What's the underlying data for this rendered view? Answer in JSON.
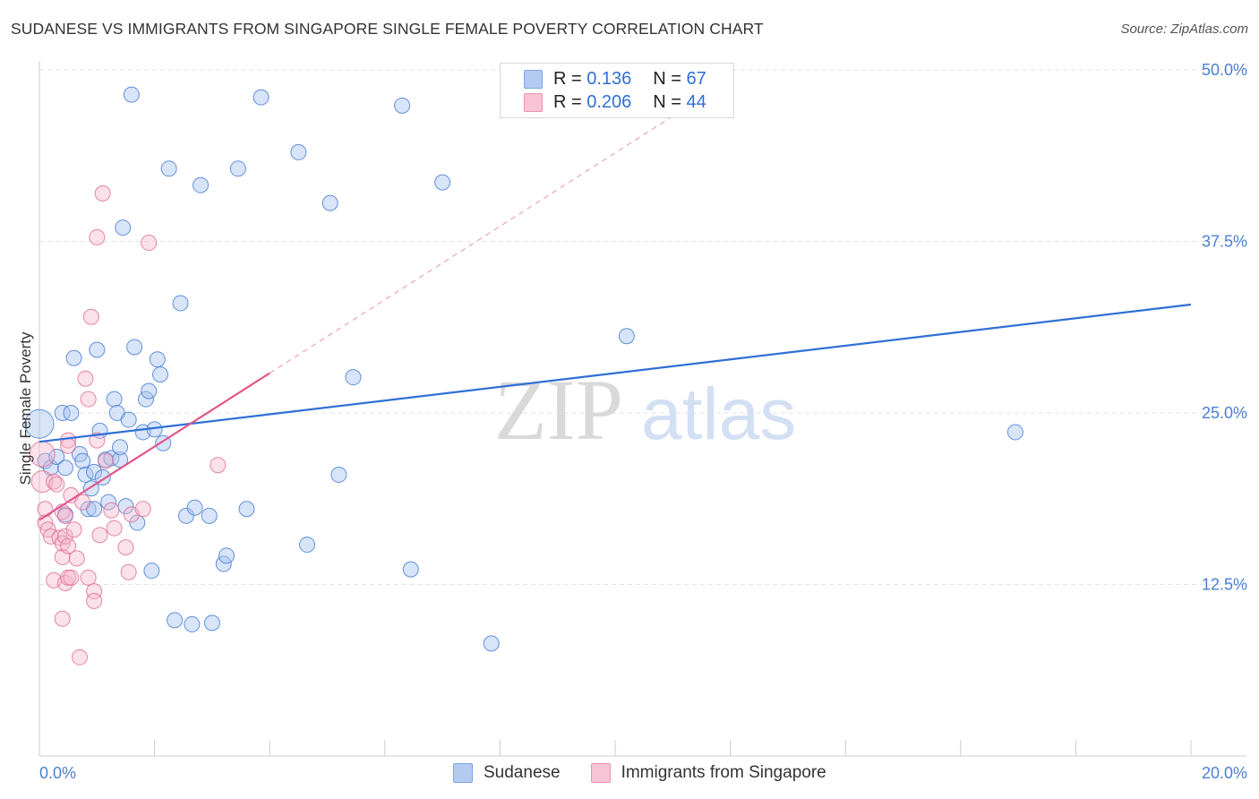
{
  "title": "SUDANESE VS IMMIGRANTS FROM SINGAPORE SINGLE FEMALE POVERTY CORRELATION CHART",
  "source": "Source: ZipAtlas.com",
  "watermark": {
    "zip": "ZIP",
    "atlas": "atlas"
  },
  "colors": {
    "blue_fill": "#a9c4ef",
    "blue_stroke": "#4a7fd4",
    "blue_line": "#2f6fd6",
    "pink_fill": "#f6b6cb",
    "pink_stroke": "#e0709a",
    "pink_line": "#e0578a",
    "axis_label": "#4a7fd4",
    "grid": "#e3e3e3"
  },
  "legend": {
    "rows": [
      {
        "r_label": "R =",
        "r_value": "0.136",
        "n_label": "N =",
        "n_value": "67"
      },
      {
        "r_label": "R =",
        "r_value": "0.206",
        "n_label": "N =",
        "n_value": "44"
      }
    ]
  },
  "bottom_legend": [
    "Sudanese",
    "Immigrants from Singapore"
  ],
  "chart_data": {
    "type": "scatter",
    "title": "SUDANESE VS IMMIGRANTS FROM SINGAPORE SINGLE FEMALE POVERTY CORRELATION CHART",
    "xlabel": "",
    "ylabel": "Single Female Poverty",
    "xlim": [
      0,
      20
    ],
    "ylim": [
      0,
      50
    ],
    "x_tick_labels": [
      "0.0%",
      "20.0%"
    ],
    "y_ticks": [
      12.5,
      25.0,
      37.5,
      50.0
    ],
    "y_tick_labels": [
      "12.5%",
      "25.0%",
      "37.5%",
      "50.0%"
    ],
    "grid": true,
    "legend_position": "top-center",
    "series": [
      {
        "name": "Sudanese",
        "R": 0.136,
        "N": 67,
        "trend": {
          "x": [
            0,
            20
          ],
          "y": [
            22.9,
            32.9
          ]
        },
        "points": [
          {
            "x": 0.0,
            "y": 24.2,
            "size": 16
          },
          {
            "x": 0.1,
            "y": 21.5
          },
          {
            "x": 0.2,
            "y": 21.0
          },
          {
            "x": 0.3,
            "y": 21.8
          },
          {
            "x": 0.4,
            "y": 25.0
          },
          {
            "x": 0.45,
            "y": 17.6
          },
          {
            "x": 0.45,
            "y": 21.0
          },
          {
            "x": 0.55,
            "y": 25.0
          },
          {
            "x": 0.6,
            "y": 29.0
          },
          {
            "x": 0.7,
            "y": 22.0
          },
          {
            "x": 0.75,
            "y": 21.5
          },
          {
            "x": 0.8,
            "y": 20.5
          },
          {
            "x": 0.85,
            "y": 18.0
          },
          {
            "x": 0.9,
            "y": 19.5
          },
          {
            "x": 0.95,
            "y": 20.7
          },
          {
            "x": 0.95,
            "y": 18.0
          },
          {
            "x": 1.0,
            "y": 29.6
          },
          {
            "x": 1.05,
            "y": 23.7
          },
          {
            "x": 1.1,
            "y": 20.3
          },
          {
            "x": 1.15,
            "y": 21.6
          },
          {
            "x": 1.2,
            "y": 18.5
          },
          {
            "x": 1.25,
            "y": 21.7
          },
          {
            "x": 1.3,
            "y": 26.0
          },
          {
            "x": 1.35,
            "y": 25.0
          },
          {
            "x": 1.4,
            "y": 21.6
          },
          {
            "x": 1.4,
            "y": 22.5
          },
          {
            "x": 1.45,
            "y": 38.5
          },
          {
            "x": 1.5,
            "y": 18.2
          },
          {
            "x": 1.55,
            "y": 24.5
          },
          {
            "x": 1.6,
            "y": 48.2
          },
          {
            "x": 1.65,
            "y": 29.8
          },
          {
            "x": 1.7,
            "y": 17.0
          },
          {
            "x": 1.8,
            "y": 23.6
          },
          {
            "x": 1.85,
            "y": 26.0
          },
          {
            "x": 1.9,
            "y": 26.6
          },
          {
            "x": 1.95,
            "y": 13.5
          },
          {
            "x": 2.0,
            "y": 23.8
          },
          {
            "x": 2.05,
            "y": 28.9
          },
          {
            "x": 2.1,
            "y": 27.8
          },
          {
            "x": 2.15,
            "y": 22.8
          },
          {
            "x": 2.25,
            "y": 42.8
          },
          {
            "x": 2.35,
            "y": 9.9
          },
          {
            "x": 2.45,
            "y": 33.0
          },
          {
            "x": 2.55,
            "y": 17.5
          },
          {
            "x": 2.65,
            "y": 9.6
          },
          {
            "x": 2.7,
            "y": 18.1
          },
          {
            "x": 2.8,
            "y": 41.6
          },
          {
            "x": 2.95,
            "y": 17.5
          },
          {
            "x": 3.0,
            "y": 9.7
          },
          {
            "x": 3.2,
            "y": 14.0
          },
          {
            "x": 3.25,
            "y": 14.6
          },
          {
            "x": 3.45,
            "y": 42.8
          },
          {
            "x": 3.6,
            "y": 18.0
          },
          {
            "x": 3.85,
            "y": 48.0
          },
          {
            "x": 4.5,
            "y": 44.0
          },
          {
            "x": 4.65,
            "y": 15.4
          },
          {
            "x": 5.05,
            "y": 40.3
          },
          {
            "x": 5.2,
            "y": 20.5
          },
          {
            "x": 5.45,
            "y": 27.6
          },
          {
            "x": 6.3,
            "y": 47.4
          },
          {
            "x": 6.45,
            "y": 13.6
          },
          {
            "x": 7.0,
            "y": 41.8
          },
          {
            "x": 7.85,
            "y": 8.2
          },
          {
            "x": 10.2,
            "y": 30.6
          },
          {
            "x": 16.95,
            "y": 23.6
          }
        ]
      },
      {
        "name": "Immigrants from Singapore",
        "R": 0.206,
        "N": 44,
        "trend": {
          "x": [
            0,
            4.0
          ],
          "y": [
            17.2,
            27.9
          ]
        },
        "trend_extension": {
          "x": [
            4.0,
            12.0
          ],
          "y": [
            27.9,
            49.3
          ]
        },
        "points": [
          {
            "x": 0.05,
            "y": 22.0,
            "size": 14
          },
          {
            "x": 0.05,
            "y": 20.0,
            "size": 12
          },
          {
            "x": 0.1,
            "y": 18.0
          },
          {
            "x": 0.1,
            "y": 17.0
          },
          {
            "x": 0.15,
            "y": 16.5
          },
          {
            "x": 0.2,
            "y": 16.0
          },
          {
            "x": 0.25,
            "y": 12.8
          },
          {
            "x": 0.25,
            "y": 20.0
          },
          {
            "x": 0.3,
            "y": 19.8
          },
          {
            "x": 0.35,
            "y": 15.9
          },
          {
            "x": 0.4,
            "y": 17.8
          },
          {
            "x": 0.4,
            "y": 14.5
          },
          {
            "x": 0.4,
            "y": 15.5
          },
          {
            "x": 0.4,
            "y": 10.0
          },
          {
            "x": 0.45,
            "y": 17.5
          },
          {
            "x": 0.45,
            "y": 16.0
          },
          {
            "x": 0.45,
            "y": 12.6
          },
          {
            "x": 0.5,
            "y": 23.0
          },
          {
            "x": 0.5,
            "y": 22.6
          },
          {
            "x": 0.5,
            "y": 15.3
          },
          {
            "x": 0.5,
            "y": 13.0
          },
          {
            "x": 0.55,
            "y": 19.0
          },
          {
            "x": 0.55,
            "y": 13.0
          },
          {
            "x": 0.6,
            "y": 16.5
          },
          {
            "x": 0.65,
            "y": 14.4
          },
          {
            "x": 0.7,
            "y": 7.2
          },
          {
            "x": 0.75,
            "y": 18.5
          },
          {
            "x": 0.8,
            "y": 27.5
          },
          {
            "x": 0.85,
            "y": 26.0
          },
          {
            "x": 0.85,
            "y": 13.0
          },
          {
            "x": 0.9,
            "y": 32.0
          },
          {
            "x": 0.95,
            "y": 12.0
          },
          {
            "x": 0.95,
            "y": 11.3
          },
          {
            "x": 1.0,
            "y": 23.0
          },
          {
            "x": 1.05,
            "y": 16.1
          },
          {
            "x": 1.1,
            "y": 41.0
          },
          {
            "x": 1.0,
            "y": 37.8
          },
          {
            "x": 1.15,
            "y": 21.5
          },
          {
            "x": 1.25,
            "y": 17.9
          },
          {
            "x": 1.3,
            "y": 16.6
          },
          {
            "x": 1.5,
            "y": 15.2
          },
          {
            "x": 1.55,
            "y": 13.4
          },
          {
            "x": 1.6,
            "y": 17.6
          },
          {
            "x": 1.8,
            "y": 18.0
          },
          {
            "x": 1.9,
            "y": 37.4
          },
          {
            "x": 3.1,
            "y": 21.2
          }
        ]
      }
    ]
  }
}
